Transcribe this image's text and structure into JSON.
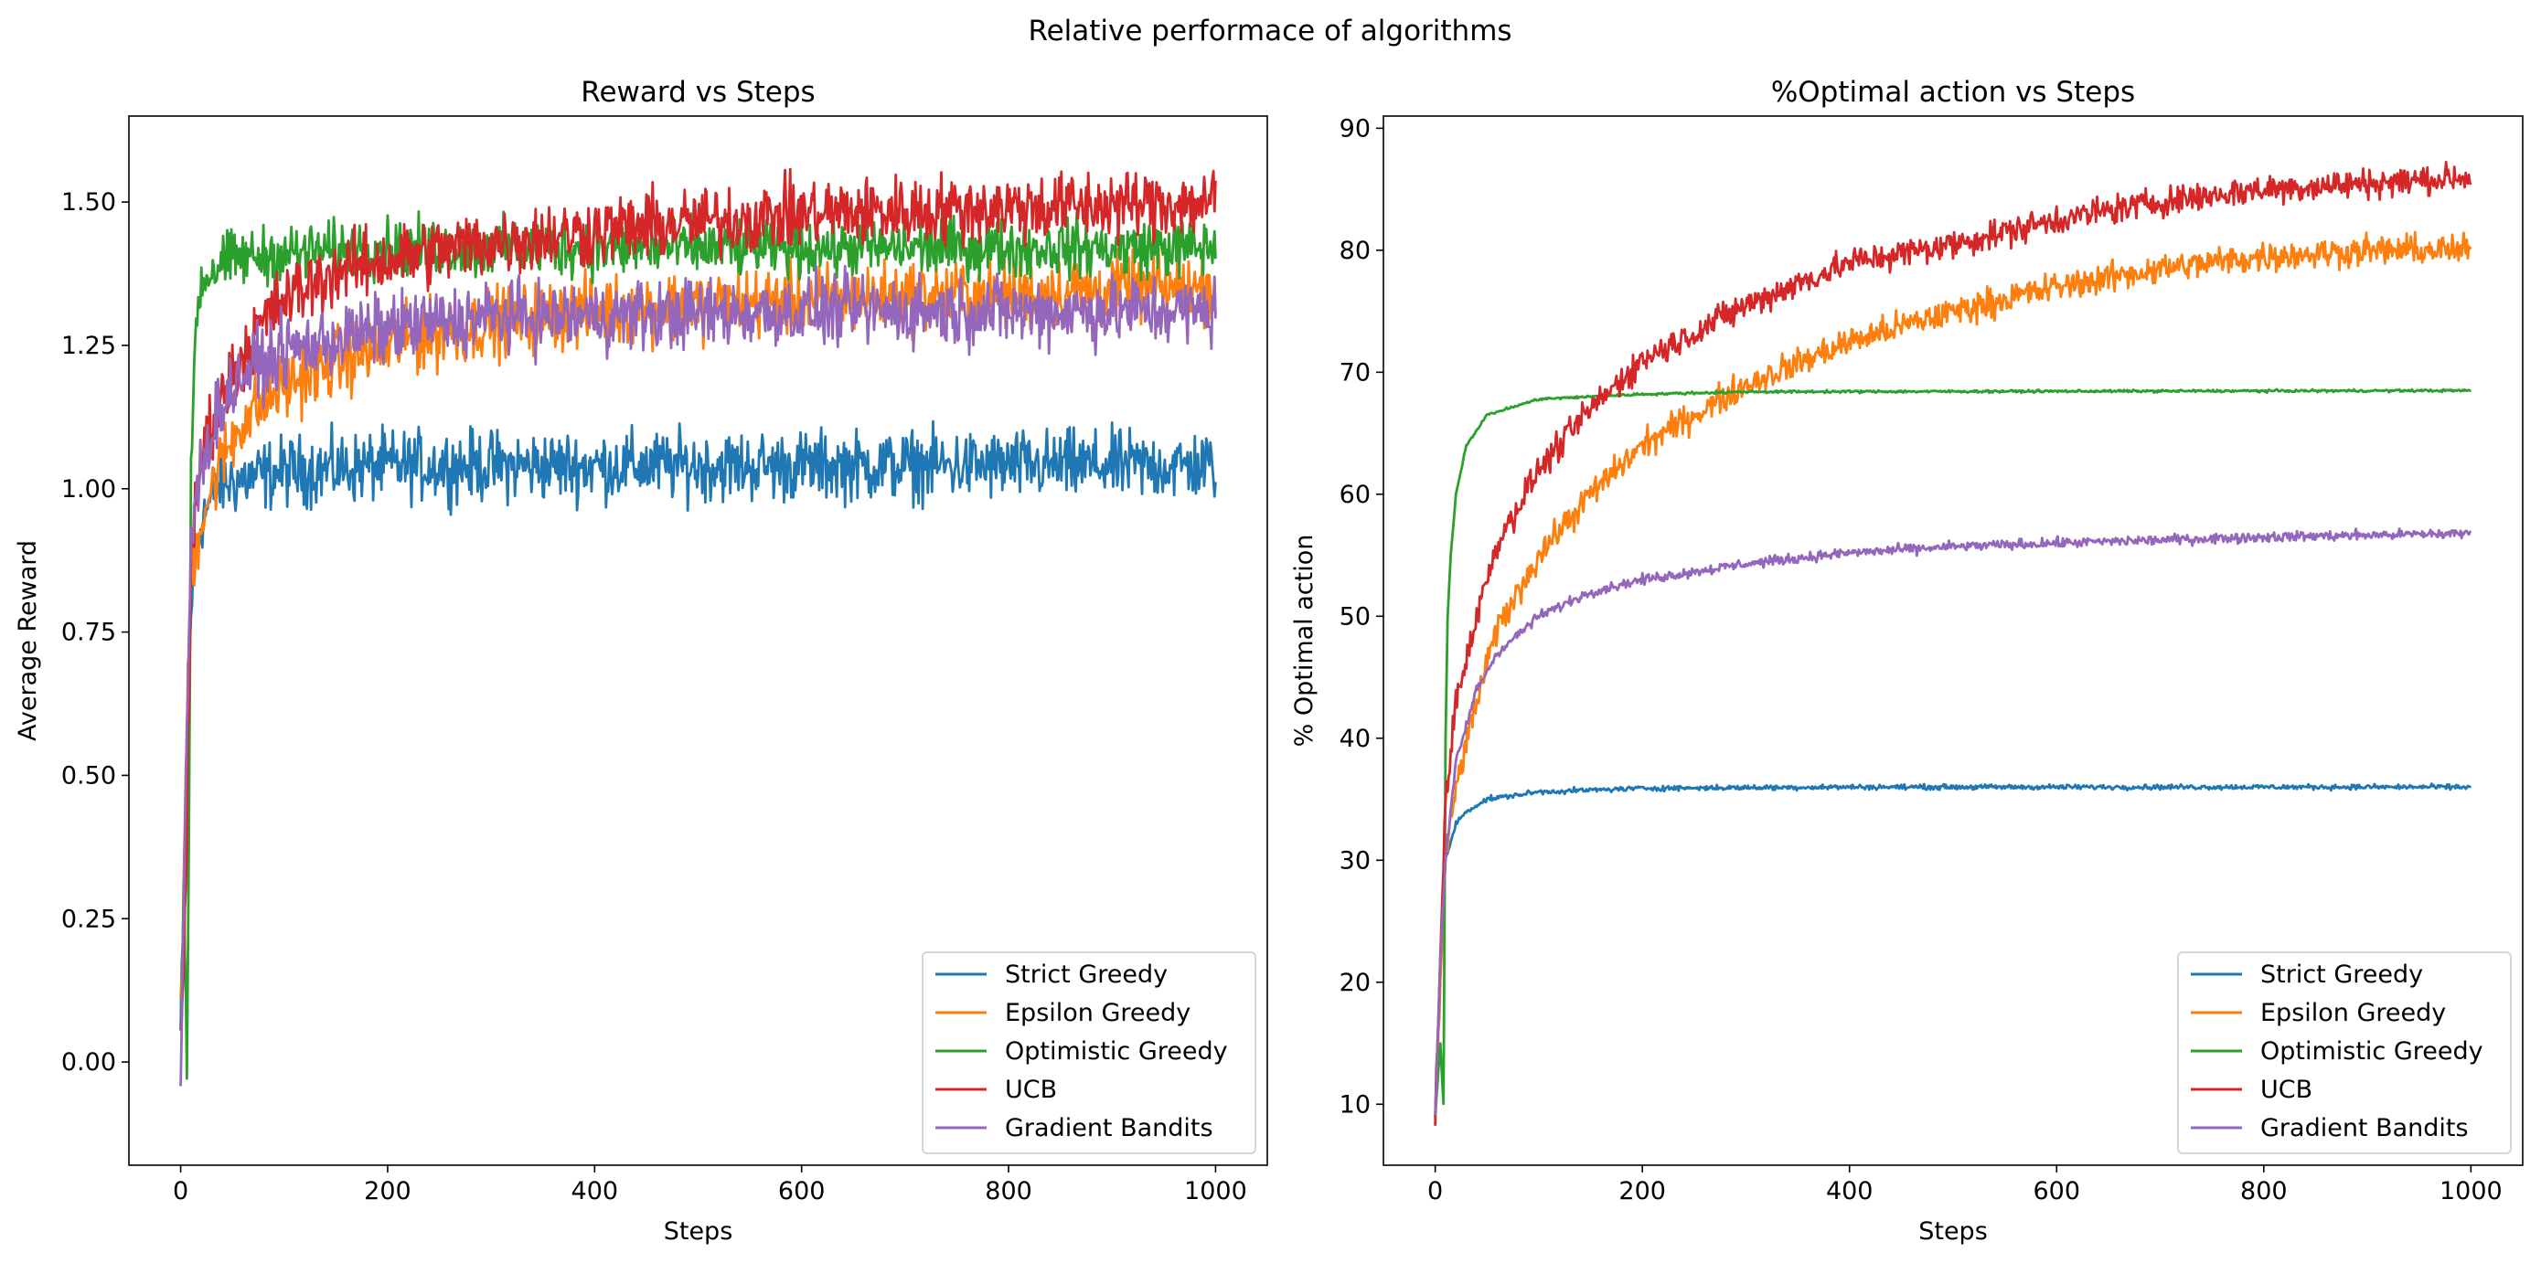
{
  "figure": {
    "suptitle": "Relative performace of algorithms"
  },
  "colors": {
    "Strict Greedy": "#1f77b4",
    "Epsilon Greedy": "#ff7f0e",
    "Optimistic Greedy": "#2ca02c",
    "UCB": "#d62728",
    "Gradient Bandits": "#9467bd"
  },
  "chart_data": [
    {
      "type": "line",
      "title": "Reward vs Steps",
      "xlabel": "Steps",
      "ylabel": "Average Reward",
      "xlim": [
        -50,
        1050
      ],
      "ylim": [
        -0.18,
        1.65
      ],
      "xticks": [
        0,
        200,
        400,
        600,
        800,
        1000
      ],
      "yticks": [
        0.0,
        0.25,
        0.5,
        0.75,
        1.0,
        1.25,
        1.5
      ],
      "ytick_labels": [
        "0.00",
        "0.25",
        "0.50",
        "0.75",
        "1.00",
        "1.25",
        "1.50"
      ],
      "grid": false,
      "legend": "lower-right",
      "noise_note": "values are approximate smoothed trends; curves show step-to-step fluctuation",
      "series": [
        {
          "name": "Strict Greedy",
          "x": [
            0,
            5,
            10,
            20,
            40,
            100,
            200,
            400,
            600,
            800,
            1000
          ],
          "values": [
            0.05,
            0.4,
            0.8,
            0.95,
            1.01,
            1.03,
            1.04,
            1.04,
            1.04,
            1.04,
            1.04
          ],
          "noise": 0.03
        },
        {
          "name": "Epsilon Greedy",
          "x": [
            0,
            5,
            10,
            20,
            40,
            60,
            100,
            150,
            200,
            300,
            400,
            600,
            800,
            1000
          ],
          "values": [
            0.05,
            0.5,
            0.85,
            0.95,
            1.05,
            1.12,
            1.18,
            1.22,
            1.25,
            1.29,
            1.31,
            1.33,
            1.34,
            1.35
          ],
          "noise": 0.03
        },
        {
          "name": "Optimistic Greedy",
          "x": [
            0,
            3,
            6,
            8,
            10,
            15,
            20,
            30,
            50,
            100,
            200,
            400,
            600,
            800,
            1000
          ],
          "values": [
            0.05,
            0.3,
            -0.05,
            0.4,
            1.05,
            1.3,
            1.36,
            1.38,
            1.4,
            1.41,
            1.42,
            1.42,
            1.42,
            1.42,
            1.42
          ],
          "noise": 0.025
        },
        {
          "name": "UCB",
          "x": [
            0,
            5,
            10,
            15,
            20,
            30,
            50,
            75,
            100,
            150,
            200,
            300,
            400,
            600,
            800,
            1000
          ],
          "values": [
            0.05,
            0.3,
            0.85,
            0.98,
            1.05,
            1.12,
            1.2,
            1.28,
            1.33,
            1.38,
            1.4,
            1.43,
            1.45,
            1.48,
            1.49,
            1.5
          ],
          "noise": 0.03
        },
        {
          "name": "Gradient Bandits",
          "x": [
            0,
            5,
            10,
            20,
            40,
            60,
            100,
            150,
            200,
            300,
            400,
            600,
            800,
            1000
          ],
          "values": [
            -0.05,
            0.5,
            0.9,
            1.05,
            1.15,
            1.2,
            1.24,
            1.26,
            1.28,
            1.3,
            1.3,
            1.31,
            1.31,
            1.31
          ],
          "noise": 0.03
        }
      ]
    },
    {
      "type": "line",
      "title": "%Optimal action vs Steps",
      "xlabel": "Steps",
      "ylabel": "% Optimal action",
      "xlim": [
        -50,
        1050
      ],
      "ylim": [
        5,
        91
      ],
      "xticks": [
        0,
        200,
        400,
        600,
        800,
        1000
      ],
      "yticks": [
        10,
        20,
        30,
        40,
        50,
        60,
        70,
        80,
        90
      ],
      "ytick_labels": [
        "10",
        "20",
        "30",
        "40",
        "50",
        "60",
        "70",
        "80",
        "90"
      ],
      "grid": false,
      "legend": "lower-right",
      "noise_note": "values are approximate smoothed trends; curves show step-to-step fluctuation",
      "series": [
        {
          "name": "Strict Greedy",
          "x": [
            0,
            5,
            10,
            20,
            30,
            50,
            100,
            200,
            400,
            600,
            800,
            1000
          ],
          "values": [
            9,
            22,
            30,
            33,
            34,
            35,
            35.6,
            35.9,
            36,
            36,
            36,
            36
          ],
          "noise": 0.1
        },
        {
          "name": "Epsilon Greedy",
          "x": [
            0,
            10,
            20,
            40,
            60,
            100,
            150,
            200,
            300,
            400,
            500,
            600,
            700,
            800,
            900,
            1000
          ],
          "values": [
            9,
            30,
            36,
            43,
            49,
            55,
            60,
            64,
            69,
            72.5,
            75,
            77,
            78.5,
            79.5,
            80,
            80
          ],
          "noise": 0.6
        },
        {
          "name": "Optimistic Greedy",
          "x": [
            0,
            5,
            8,
            10,
            12,
            15,
            20,
            30,
            50,
            100,
            200,
            300,
            1000
          ],
          "values": [
            9,
            15,
            10,
            40,
            50,
            55,
            60,
            64,
            66.5,
            67.8,
            68.2,
            68.4,
            68.5
          ],
          "noise": 0.05
        },
        {
          "name": "UCB",
          "x": [
            0,
            10,
            20,
            40,
            60,
            100,
            150,
            200,
            300,
            400,
            500,
            600,
            700,
            800,
            900,
            1000
          ],
          "values": [
            9,
            35,
            43,
            50,
            56,
            62,
            67,
            71,
            75.5,
            79,
            80.5,
            82.5,
            84,
            85,
            85.5,
            86
          ],
          "noise": 0.6
        },
        {
          "name": "Gradient Bandits",
          "x": [
            0,
            5,
            10,
            20,
            40,
            60,
            100,
            150,
            200,
            300,
            400,
            500,
            600,
            800,
            1000
          ],
          "values": [
            9,
            22,
            30,
            38,
            44,
            47,
            50,
            52,
            53,
            54.3,
            55.2,
            55.7,
            56,
            56.5,
            56.8
          ],
          "noise": 0.2
        }
      ]
    }
  ]
}
